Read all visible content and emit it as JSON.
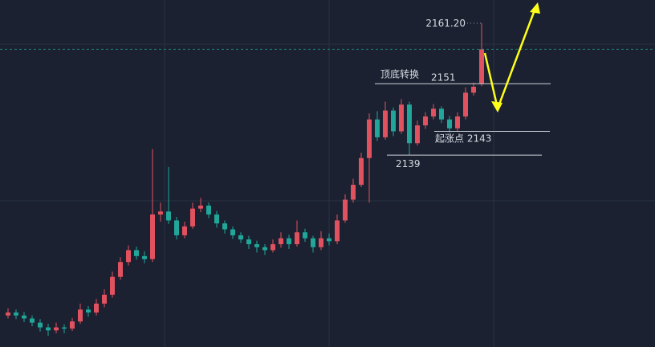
{
  "chart_data": {
    "type": "candlestick",
    "ylim": [
      2106.7,
      2165.1
    ],
    "up_color": "#e0525f",
    "down_color": "#22a69a",
    "ohlc": [
      [
        2112.0,
        2113.2,
        2111.5,
        2112.5
      ],
      [
        2112.5,
        2113.0,
        2111.4,
        2112.0
      ],
      [
        2112.0,
        2112.6,
        2110.9,
        2111.5
      ],
      [
        2111.5,
        2112.0,
        2110.2,
        2110.8
      ],
      [
        2110.8,
        2111.4,
        2109.3,
        2110.0
      ],
      [
        2110.0,
        2110.6,
        2108.6,
        2109.5
      ],
      [
        2109.5,
        2110.8,
        2109.0,
        2110.0
      ],
      [
        2110.0,
        2110.5,
        2109.0,
        2109.8
      ],
      [
        2109.8,
        2111.6,
        2109.4,
        2111.0
      ],
      [
        2111.0,
        2114.0,
        2110.6,
        2113.0
      ],
      [
        2113.0,
        2113.6,
        2111.8,
        2112.5
      ],
      [
        2112.5,
        2114.8,
        2112.0,
        2114.0
      ],
      [
        2114.0,
        2116.4,
        2113.4,
        2115.5
      ],
      [
        2115.5,
        2119.4,
        2115.0,
        2118.5
      ],
      [
        2118.5,
        2121.8,
        2118.0,
        2121.0
      ],
      [
        2121.0,
        2123.8,
        2120.4,
        2123.0
      ],
      [
        2123.0,
        2123.6,
        2121.4,
        2122.0
      ],
      [
        2122.0,
        2122.8,
        2120.8,
        2121.5
      ],
      [
        2121.5,
        2140.0,
        2121.0,
        2129.0
      ],
      [
        2129.0,
        2131.0,
        2127.8,
        2129.5
      ],
      [
        2129.5,
        2137.0,
        2127.4,
        2128.0
      ],
      [
        2128.0,
        2128.6,
        2124.8,
        2125.5
      ],
      [
        2125.5,
        2127.8,
        2125.0,
        2127.0
      ],
      [
        2127.0,
        2131.0,
        2126.6,
        2130.0
      ],
      [
        2130.0,
        2131.8,
        2129.4,
        2130.5
      ],
      [
        2130.5,
        2131.0,
        2128.4,
        2129.0
      ],
      [
        2129.0,
        2129.6,
        2126.8,
        2127.5
      ],
      [
        2127.5,
        2128.0,
        2125.8,
        2126.5
      ],
      [
        2126.5,
        2127.0,
        2124.9,
        2125.5
      ],
      [
        2125.5,
        2126.0,
        2124.2,
        2124.8
      ],
      [
        2124.8,
        2125.4,
        2123.2,
        2124.0
      ],
      [
        2124.0,
        2124.6,
        2122.6,
        2123.5
      ],
      [
        2123.5,
        2124.0,
        2122.2,
        2123.0
      ],
      [
        2123.0,
        2124.8,
        2122.6,
        2124.0
      ],
      [
        2124.0,
        2126.0,
        2123.4,
        2125.0
      ],
      [
        2125.0,
        2125.6,
        2123.2,
        2124.0
      ],
      [
        2124.0,
        2128.0,
        2123.6,
        2126.0
      ],
      [
        2126.0,
        2126.6,
        2124.4,
        2125.0
      ],
      [
        2125.0,
        2125.4,
        2122.6,
        2123.5
      ],
      [
        2123.5,
        2126.2,
        2123.0,
        2125.0
      ],
      [
        2125.0,
        2125.8,
        2123.8,
        2124.5
      ],
      [
        2124.5,
        2129.0,
        2124.0,
        2128.0
      ],
      [
        2128.0,
        2132.4,
        2127.6,
        2131.5
      ],
      [
        2131.5,
        2135.0,
        2131.0,
        2134.0
      ],
      [
        2134.0,
        2139.4,
        2133.6,
        2138.5
      ],
      [
        2138.5,
        2146.0,
        2131.0,
        2145.0
      ],
      [
        2145.0,
        2146.4,
        2141.4,
        2142.0
      ],
      [
        2142.0,
        2148.0,
        2141.6,
        2146.5
      ],
      [
        2146.5,
        2147.0,
        2142.2,
        2143.0
      ],
      [
        2143.0,
        2148.4,
        2142.6,
        2147.5
      ],
      [
        2147.5,
        2148.0,
        2139.0,
        2141.0
      ],
      [
        2141.0,
        2144.8,
        2140.6,
        2144.0
      ],
      [
        2144.0,
        2146.2,
        2143.4,
        2145.5
      ],
      [
        2145.5,
        2147.6,
        2145.0,
        2146.8
      ],
      [
        2146.8,
        2147.2,
        2144.4,
        2145.0
      ],
      [
        2145.0,
        2145.6,
        2142.8,
        2143.5
      ],
      [
        2143.5,
        2146.2,
        2143.0,
        2145.5
      ],
      [
        2145.5,
        2150.4,
        2145.0,
        2149.5
      ],
      [
        2149.5,
        2151.2,
        2149.0,
        2150.5
      ],
      [
        2151.0,
        2161.2,
        2150.6,
        2156.8
      ]
    ],
    "high_label": {
      "value": 2161.2,
      "label": "2161.20"
    },
    "levels": [
      {
        "value": 2151,
        "note": "顶底转换"
      },
      {
        "value": 2143,
        "label": "起涨点 2143"
      },
      {
        "value": 2139
      }
    ]
  }
}
